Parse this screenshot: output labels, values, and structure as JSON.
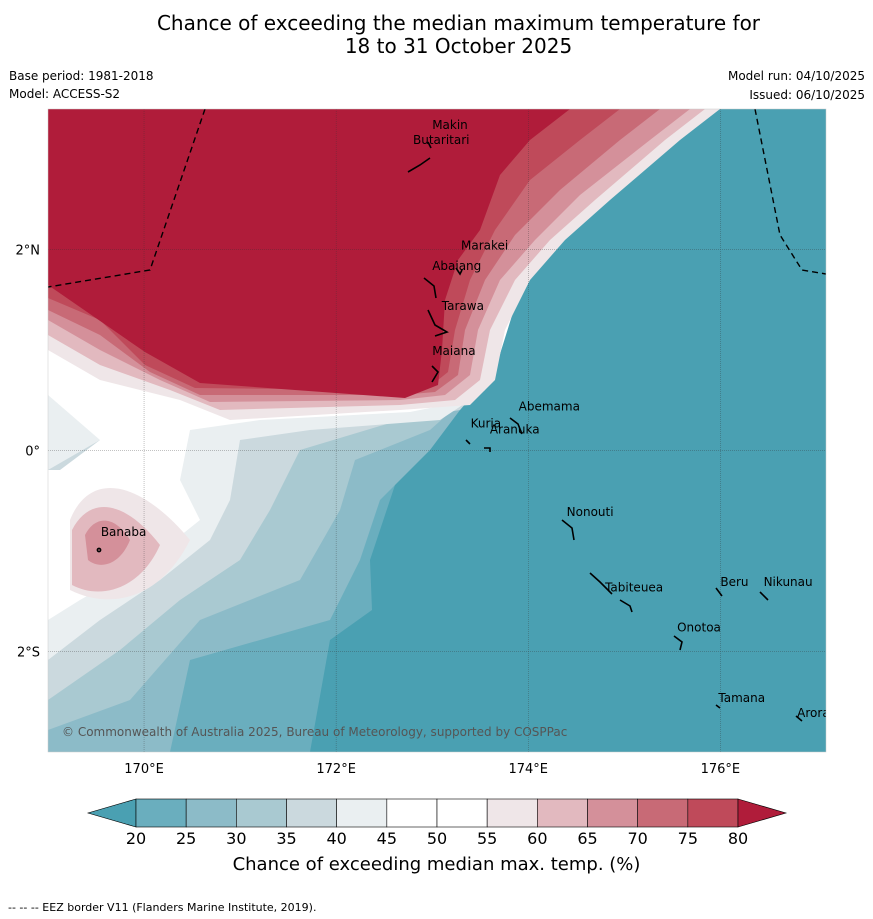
{
  "title": {
    "line1": "Chance of exceeding the median maximum temperature for",
    "line2": "18 to 31 October 2025"
  },
  "meta": {
    "base_period": "Base period: 1981-2018",
    "model": "Model: ACCESS-S2",
    "model_run": "Model run: 04/10/2025",
    "issued": "Issued: 06/10/2025"
  },
  "map": {
    "lon_range": [
      169.0,
      177.1
    ],
    "lat_range": [
      -3.0,
      3.4
    ],
    "lon_ticks": [
      {
        "value": 170,
        "label": "170°E"
      },
      {
        "value": 172,
        "label": "172°E"
      },
      {
        "value": 174,
        "label": "174°E"
      },
      {
        "value": 176,
        "label": "176°E"
      }
    ],
    "lat_ticks": [
      {
        "value": 2,
        "label": "2°N"
      },
      {
        "value": 0,
        "label": "0°"
      },
      {
        "value": -2,
        "label": "2°S"
      }
    ],
    "places": [
      {
        "name": "Makin",
        "lon": 173.0,
        "lat": 3.2
      },
      {
        "name": "Butaritari",
        "lon": 172.8,
        "lat": 3.05
      },
      {
        "name": "Marakei",
        "lon": 173.3,
        "lat": 2.0
      },
      {
        "name": "Abaiang",
        "lon": 173.0,
        "lat": 1.8
      },
      {
        "name": "Tarawa",
        "lon": 173.1,
        "lat": 1.4
      },
      {
        "name": "Maiana",
        "lon": 173.0,
        "lat": 0.95
      },
      {
        "name": "Abemama",
        "lon": 173.9,
        "lat": 0.4
      },
      {
        "name": "Kuria",
        "lon": 173.4,
        "lat": 0.23
      },
      {
        "name": "Aranuka",
        "lon": 173.6,
        "lat": 0.17
      },
      {
        "name": "Banaba",
        "lon": 169.55,
        "lat": -0.85
      },
      {
        "name": "Nonouti",
        "lon": 174.4,
        "lat": -0.65
      },
      {
        "name": "Beru",
        "lon": 176.0,
        "lat": -1.35
      },
      {
        "name": "Nikunau",
        "lon": 176.45,
        "lat": -1.35
      },
      {
        "name": "Tabiteuea",
        "lon": 174.8,
        "lat": -1.4
      },
      {
        "name": "Onotoa",
        "lon": 175.55,
        "lat": -1.8
      },
      {
        "name": "Tamana",
        "lon": 175.98,
        "lat": -2.5
      },
      {
        "name": "Arorae",
        "lon": 176.8,
        "lat": -2.65
      }
    ],
    "copyright": "© Commonwealth of Australia 2025, Bureau of Meteorology, supported by COSPPac"
  },
  "colorbar": {
    "ticks": [
      "20",
      "25",
      "30",
      "35",
      "40",
      "45",
      "50",
      "55",
      "60",
      "65",
      "70",
      "75",
      "80"
    ],
    "label": "Chance of exceeding median max. temp. (%)",
    "colors": {
      "under": "#4aa0b2",
      "c20": "#6aaebe",
      "c25": "#8cbbc8",
      "c30": "#a9c9d1",
      "c35": "#cbd9de",
      "c40": "#eaeff1",
      "c45": "#ffffff",
      "c50": "#ffffff",
      "c55": "#efe6e8",
      "c60": "#e2b9bf",
      "c65": "#d4909a",
      "c70": "#c86a76",
      "c75": "#bf4a5a",
      "over": "#b01c3a"
    }
  },
  "footer": "--  --  -- EEZ border V11 (Flanders Marine Institute, 2019)."
}
